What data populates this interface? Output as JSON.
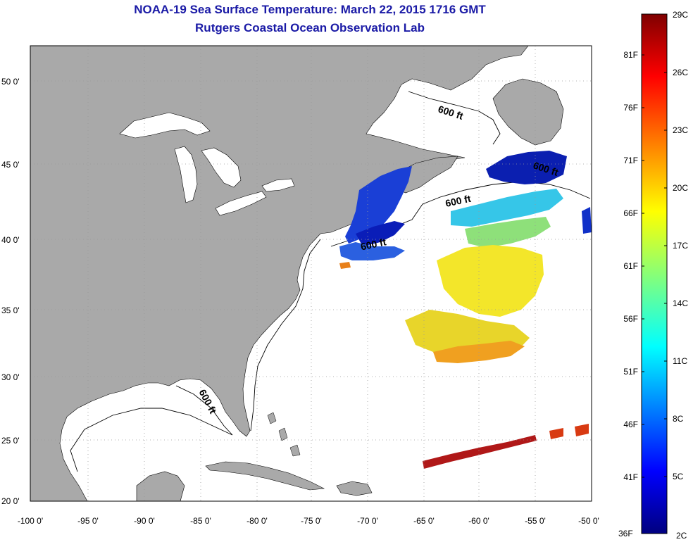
{
  "title": {
    "line1": "NOAA-19 Sea Surface Temperature:  March 22, 2015 1716 GMT",
    "line2": "Rutgers Coastal Ocean Observation Lab"
  },
  "lat_labels": [
    "50 0'",
    "45 0'",
    "40 0'",
    "35 0'",
    "30 0'",
    "25 0'",
    "20 0'"
  ],
  "lon_labels": [
    "-100 0'",
    "-95 0'",
    "-90 0'",
    "-85 0'",
    "-80 0'",
    "-75 0'",
    "-70 0'",
    "-65 0'",
    "-60 0'",
    "-55 0'",
    "-50 0'"
  ],
  "contour_label": "600 ft",
  "colorbar": {
    "celsius": [
      "29C",
      "26C",
      "23C",
      "20C",
      "17C",
      "14C",
      "11C",
      "8C",
      "5C",
      "2C"
    ],
    "fahrenheit": [
      "81F",
      "76F",
      "71F",
      "66F",
      "61F",
      "56F",
      "51F",
      "46F",
      "41F",
      "36F"
    ]
  },
  "colors": {
    "land": "#a9a9a9",
    "ocean": "#ffffff",
    "title": "#1a1aa6",
    "scale_min": "#00007f",
    "scale_max": "#7f0000"
  }
}
